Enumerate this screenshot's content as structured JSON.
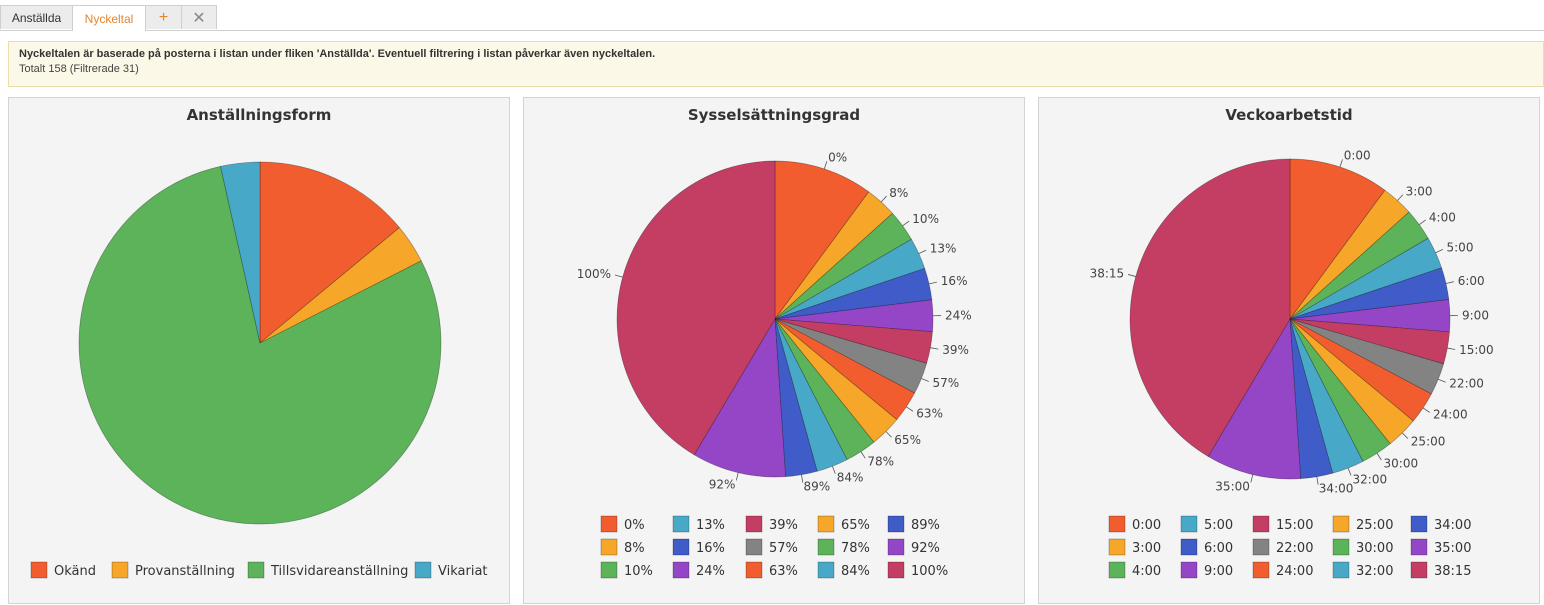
{
  "tabs": [
    {
      "label": "Anställda",
      "active": false
    },
    {
      "label": "Nyckeltal",
      "active": true
    }
  ],
  "tab_controls": {
    "add": "+",
    "close": "✕"
  },
  "info": {
    "line1": "Nyckeltalen är baserade på posterna i listan under fliken 'Anställda'. Eventuell filtrering i listan påverkar även nyckeltalen.",
    "line2": "Totalt 158 (Filtrerade 31)"
  },
  "chart_data": [
    {
      "type": "pie",
      "title": "Anställningsform",
      "slice_labels_shown": false,
      "slices": [
        {
          "label": "Okänd",
          "value": 14,
          "color": "#f15d2e"
        },
        {
          "label": "Provanställning",
          "value": 3.5,
          "color": "#f6a628"
        },
        {
          "label": "Tillsvidareanställning",
          "value": 79,
          "color": "#5cb35a"
        },
        {
          "label": "Vikariat",
          "value": 3.5,
          "color": "#48a8c7"
        }
      ],
      "legend_position": "bottom"
    },
    {
      "type": "pie",
      "title": "Sysselsättningsgrad",
      "slice_labels_shown": true,
      "slices": [
        {
          "label": "0%",
          "value": 10,
          "color": "#f15d2e"
        },
        {
          "label": "8%",
          "value": 3.2,
          "color": "#f6a628"
        },
        {
          "label": "10%",
          "value": 3.2,
          "color": "#5cb35a"
        },
        {
          "label": "13%",
          "value": 3.2,
          "color": "#48a8c7"
        },
        {
          "label": "16%",
          "value": 3.2,
          "color": "#3f5cc8"
        },
        {
          "label": "24%",
          "value": 3.2,
          "color": "#9446c7"
        },
        {
          "label": "39%",
          "value": 3.2,
          "color": "#c43e64"
        },
        {
          "label": "57%",
          "value": 3.2,
          "color": "#838383"
        },
        {
          "label": "63%",
          "value": 3.2,
          "color": "#f15d2e"
        },
        {
          "label": "65%",
          "value": 3.2,
          "color": "#f6a628"
        },
        {
          "label": "78%",
          "value": 3.2,
          "color": "#5cb35a"
        },
        {
          "label": "84%",
          "value": 3.2,
          "color": "#48a8c7"
        },
        {
          "label": "89%",
          "value": 3.2,
          "color": "#3f5cc8"
        },
        {
          "label": "92%",
          "value": 9.5,
          "color": "#9446c7"
        },
        {
          "label": "100%",
          "value": 41,
          "color": "#c43e64"
        }
      ],
      "legend_position": "bottom"
    },
    {
      "type": "pie",
      "title": "Veckoarbetstid",
      "slice_labels_shown": true,
      "slices": [
        {
          "label": "0:00",
          "value": 10,
          "color": "#f15d2e"
        },
        {
          "label": "3:00",
          "value": 3.2,
          "color": "#f6a628"
        },
        {
          "label": "4:00",
          "value": 3.2,
          "color": "#5cb35a"
        },
        {
          "label": "5:00",
          "value": 3.2,
          "color": "#48a8c7"
        },
        {
          "label": "6:00",
          "value": 3.2,
          "color": "#3f5cc8"
        },
        {
          "label": "9:00",
          "value": 3.2,
          "color": "#9446c7"
        },
        {
          "label": "15:00",
          "value": 3.2,
          "color": "#c43e64"
        },
        {
          "label": "22:00",
          "value": 3.2,
          "color": "#838383"
        },
        {
          "label": "24:00",
          "value": 3.2,
          "color": "#f15d2e"
        },
        {
          "label": "25:00",
          "value": 3.2,
          "color": "#f6a628"
        },
        {
          "label": "30:00",
          "value": 3.2,
          "color": "#5cb35a"
        },
        {
          "label": "32:00",
          "value": 3.2,
          "color": "#48a8c7"
        },
        {
          "label": "34:00",
          "value": 3.2,
          "color": "#3f5cc8"
        },
        {
          "label": "35:00",
          "value": 9.5,
          "color": "#9446c7"
        },
        {
          "label": "38:15",
          "value": 41,
          "color": "#c43e64"
        }
      ],
      "legend_position": "bottom"
    }
  ]
}
